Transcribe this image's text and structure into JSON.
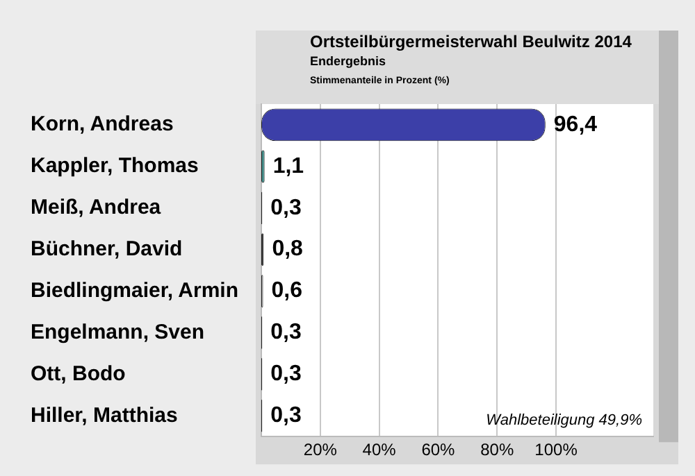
{
  "chart_data": {
    "type": "bar",
    "orientation": "horizontal",
    "title": "Ortsteilbürgermeisterwahl Beulwitz 2014",
    "subtitle": "Endergebnis",
    "xlabel": "Stimmenanteile in Prozent (%)",
    "categories": [
      "Korn, Andreas",
      "Kappler, Thomas",
      "Meiß, Andrea",
      "Büchner, David",
      "Biedlingmaier, Armin",
      "Engelmann, Sven",
      "Ott, Bodo",
      "Hiller, Matthias"
    ],
    "values": [
      96.4,
      1.1,
      0.3,
      0.8,
      0.6,
      0.3,
      0.3,
      0.3
    ],
    "value_labels": [
      "96,4",
      "1,1",
      "0,3",
      "0,8",
      "0,6",
      "0,3",
      "0,3",
      "0,3"
    ],
    "colors": [
      "#3c3fa8",
      "#3f8a86",
      "#3f8a48",
      "#303030",
      "#b8b8b8",
      "#6e6430",
      "#8a3aa0",
      "#c03030"
    ],
    "xlim": [
      0,
      133
    ],
    "xticks": [
      {
        "value": 20,
        "label": "20%"
      },
      {
        "value": 40,
        "label": "40%"
      },
      {
        "value": 60,
        "label": "60%"
      },
      {
        "value": 80,
        "label": "80%"
      },
      {
        "value": 100,
        "label": "100%"
      }
    ],
    "grid": "x",
    "legend": false,
    "annotations": [
      "Wahlbeteiligung 49,9%"
    ]
  }
}
